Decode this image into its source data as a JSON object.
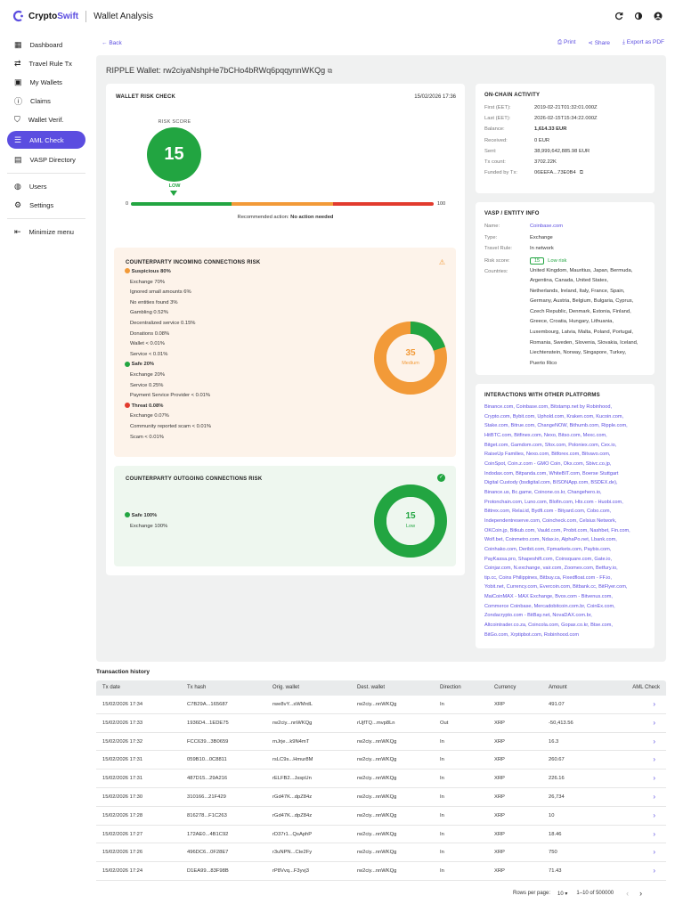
{
  "app": {
    "brand_prefix": "Crypto",
    "brand_suffix": "Swift",
    "title": "Wallet Analysis"
  },
  "sidebar": {
    "items": [
      {
        "label": "Dashboard"
      },
      {
        "label": "Travel Rule Tx"
      },
      {
        "label": "My Wallets"
      },
      {
        "label": "Claims"
      },
      {
        "label": "Wallet Verif."
      },
      {
        "label": "AML Check"
      },
      {
        "label": "VASP Directory"
      },
      {
        "label": "Users"
      },
      {
        "label": "Settings"
      },
      {
        "label": "Minimize menu"
      }
    ]
  },
  "toolbar": {
    "back": "Back",
    "print": "Print",
    "share": "Share",
    "export": "Export as PDF"
  },
  "wallet": {
    "title": "RIPPLE Wallet: rw2ciyaNshpHe7bCHo4bRWq6pqqynnWKQg"
  },
  "risk": {
    "title": "WALLET RISK CHECK",
    "date": "15/02/2026 17:36",
    "score_label": "RISK SCORE",
    "score": "15",
    "level": "LOW",
    "scale_min": "0",
    "scale_max": "100",
    "rec_prefix": "Recommended action:",
    "rec_value": "No action needed",
    "score_value": 15
  },
  "incoming": {
    "title": "COUNTERPARTY INCOMING CONNECTIONS RISK",
    "score": "35",
    "level": "Medium",
    "lines": [
      "Suspicious 80%",
      "Exchange 70%",
      "Ignored small amounts 6%",
      "No entities found 3%",
      "Gambling 0.52%",
      "Decentralized service 0.15%",
      "Donations 0.08%",
      "Wallet < 0.01%",
      "Service < 0.01%",
      "Safe 20%",
      "Exchange 20%",
      "Service 0.25%",
      "Payment Service Provider < 0.01%",
      "Threat 0.08%",
      "Exchange 0.07%",
      "Community reported scam < 0.01%",
      "Scam < 0.01%"
    ]
  },
  "outgoing": {
    "title": "COUNTERPARTY OUTGOING CONNECTIONS RISK",
    "score": "15",
    "level": "Low",
    "lines": [
      "Safe 100%",
      "Exchange 100%"
    ]
  },
  "onchain": {
    "title": "ON-CHAIN ACTIVITY",
    "rows": [
      {
        "k": "First (EET):",
        "v": "2019-02-21T01:32:01.000Z"
      },
      {
        "k": "Last (EET):",
        "v": "2026-02-15T15:34:22.000Z"
      },
      {
        "k": "Balance:",
        "v": "1,614.33 EUR"
      },
      {
        "k": "Received:",
        "v": "0 EUR"
      },
      {
        "k": "Sent:",
        "v": "38,999,642,885.98 EUR"
      },
      {
        "k": "Tx count:",
        "v": "3702.22K"
      },
      {
        "k": "Funded by Tx:",
        "v": "06EEFA...73E0B4"
      }
    ]
  },
  "vasp": {
    "title": "VASP / ENTITY INFO",
    "name_k": "Name:",
    "name": "Coinbase.com",
    "type_k": "Type:",
    "type": "Exchange",
    "travel_k": "Travel Rule:",
    "travel": "In network",
    "risk_k": "Risk score:",
    "risk_score": "15",
    "risk_level": "Low risk",
    "countries_k": "Countries:",
    "countries": [
      "United Kingdom, Mauritius, Japan, Bermuda,",
      "Argentina, Canada, United States,",
      "Netherlands, Ireland, Italy, France, Spain,",
      "Germany, Austria, Belgium, Bulgaria, Cyprus,",
      "Czech Republic, Denmark, Estonia, Finland,",
      "Greece, Croatia, Hungary, Lithuania,",
      "Luxembourg, Latvia, Malta, Poland, Portugal,",
      "Romania, Sweden, Slovenia, Slovakia, Iceland,",
      "Liechtenstein, Norway, Singapore, Turkey,",
      "Puerto Rico"
    ]
  },
  "interactions": {
    "title": "INTERACTIONS WITH OTHER PLATFORMS",
    "lines": [
      "Binance.com, Coinbase.com, Bitstamp.net by Robinhood,",
      "Crypto.com, Bybit.com, Uphold.com, Kraken.com, Kucoin.com,",
      "Stake.com, Bitrue.com, ChangeNOW, Bithumb.com, Ripple.com,",
      "HitBTC.com, Bitfinex.com, Nexo, Bitso.com, Mexc.com,",
      "Bitget.com, Gamdom.com, Sfox.com, Poloniex.com, Cex.io,",
      "RaiseUp Families, Nexo.com, Bitforex.com, Bitvavo.com,",
      "CoinSpot, Coin.z.com - GMO Coin, Okx.com, Sbivc.co.jp,",
      "Indodax.com, Bitpanda.com, WhiteBIT.com, Boerse Stuttgart",
      "Digital Custody (bsdigital.com, BISONApp.com, BSDEX.de),",
      "Binance.us, Bc.game, Coinone.co.kr, Changehero.io,",
      "Protonchain.com, Luno.com, Blofin.com, Htx.com - Huobi.com,",
      "Bittrex.com, Relai.id, Bydfi.com - Bityard.com, Cobo.com,",
      "Independentreserve.com, Coincheck.com, Celsius Network,",
      "OKCoin.jp, Bitkub.com, Vauld.com, Probit.com, Nashbet, Fin.com,",
      "Wolf.bet, Coinmetro.com, Ndax.io, AlphaPo.net, Lbank.com,",
      "Coinhako.com, Deribit.com, Fpmarkets.com, Paybis.com,",
      "PayKassa.pro, Shapeshift.com, Coinsquare.com, Gate.io,",
      "Coinjar.com, N.exchange, vair.com, Zoomex.com, Betfury.io,",
      "tip.cc, Coins Philippines, Bitbuy.ca, Fixedfloat.com - FF.io,",
      "Yobit.net, Currency.com, Evercoin.com, Bitbank.cc, BitFlyer.com,",
      "MaiCoinMAX - MAX Exchange, Bvox.com - Bitvenus.com,",
      "Commerce Coinbase, Mercadobitcoin.com.br, CoinEx.com,",
      "Zondacrypto.com - BitBay.net, NovaDAX.com.br,",
      "Altcointrader.co.za, Coincola.com, Gopax.co.kr, Btse.com,",
      "BitGo.com, Xrptipbot.com, Robinhood.com"
    ]
  },
  "txhistory": {
    "title": "Transaction history",
    "headers": [
      "Tx date",
      "Tx hash",
      "Orig. wallet",
      "Dest. wallet",
      "Direction",
      "Currency",
      "Amount",
      "AML Check"
    ],
    "rows": [
      [
        "15/02/2026 17:34",
        "C7B29A...165687",
        "rwe8vY...sWMrdL",
        "rw2ciy...nnWKQg",
        "In",
        "XRP",
        "491.07"
      ],
      [
        "15/02/2026 17:33",
        "1936D4...1EDE75",
        "rw2ciy...nnWKQg",
        "rUjfTQ...mvp8Ln",
        "Out",
        "XRP",
        "-50,413.56"
      ],
      [
        "15/02/2026 17:32",
        "FCC639...3B0659",
        "rnJrje...k9N4mT",
        "rw2ciy...nnWKQg",
        "In",
        "XRP",
        "16.3"
      ],
      [
        "15/02/2026 17:31",
        "059B10...0C8811",
        "rsLC9s...Hmur8M",
        "rw2ciy...nnWKQg",
        "In",
        "XRP",
        "260.67"
      ],
      [
        "15/02/2026 17:31",
        "487D15...29A216",
        "rELFB2...JsspUn",
        "rw2ciy...nnWKQg",
        "In",
        "XRP",
        "226.16"
      ],
      [
        "15/02/2026 17:30",
        "310166...21F429",
        "rGd47K...dpZ84z",
        "rw2ciy...nnWKQg",
        "In",
        "XRP",
        "26,734"
      ],
      [
        "15/02/2026 17:28",
        "816278...F1C263",
        "rGd47K...dpZ84z",
        "rw2ciy...nnWKQg",
        "In",
        "XRP",
        "10"
      ],
      [
        "15/02/2026 17:27",
        "172AE0...4B1C92",
        "rD37r1...QsAphP",
        "rw2ciy...nnWKQg",
        "In",
        "XRP",
        "18.46"
      ],
      [
        "15/02/2026 17:26",
        "496DC6...0F28E7",
        "r3uNPN...Cte2Fy",
        "rw2ciy...nnWKQg",
        "In",
        "XRP",
        "750"
      ],
      [
        "15/02/2026 17:24",
        "D1EA99...83F98B",
        "rP8Vvq...F3yvj3",
        "rw2ciy...nnWKQg",
        "In",
        "XRP",
        "71.43"
      ]
    ]
  },
  "pagination": {
    "rows_label": "Rows per page:",
    "rows_value": "10",
    "range": "1–10 of 500000"
  },
  "colors": {
    "accent": "#5b4de0",
    "green": "#22a541",
    "orange": "#f29a38",
    "red": "#e23b2e"
  }
}
